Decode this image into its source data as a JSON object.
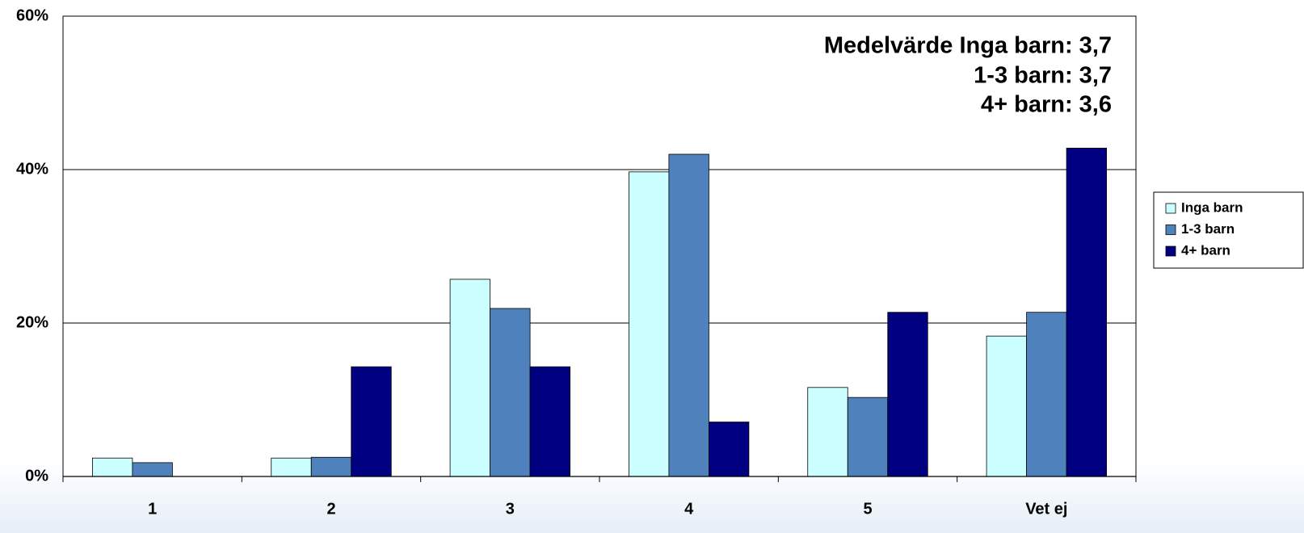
{
  "chart_data": {
    "type": "bar",
    "annotations": [
      "Medelvärde Inga barn: 3,7",
      "1-3 barn: 3,7",
      "4+ barn: 3,6"
    ],
    "categories": [
      "1",
      "2",
      "3",
      "4",
      "5",
      "Vet ej"
    ],
    "series": [
      {
        "name": "Inga barn",
        "color": "#ccffff",
        "values": [
          2.4,
          2.4,
          25.7,
          39.7,
          11.6,
          18.3
        ]
      },
      {
        "name": "1-3 barn",
        "color": "#4f81bd",
        "values": [
          1.8,
          2.5,
          21.9,
          42.0,
          10.3,
          21.4
        ]
      },
      {
        "name": "4+ barn",
        "color": "#000080",
        "values": [
          0,
          14.3,
          14.3,
          7.1,
          21.4,
          42.8
        ]
      }
    ],
    "ylim": [
      0,
      60
    ],
    "yticks": [
      {
        "value": 0,
        "label": "0%"
      },
      {
        "value": 20,
        "label": "20%"
      },
      {
        "value": 40,
        "label": "40%"
      },
      {
        "value": 60,
        "label": "60%"
      }
    ],
    "grid": true,
    "legend": "right"
  }
}
